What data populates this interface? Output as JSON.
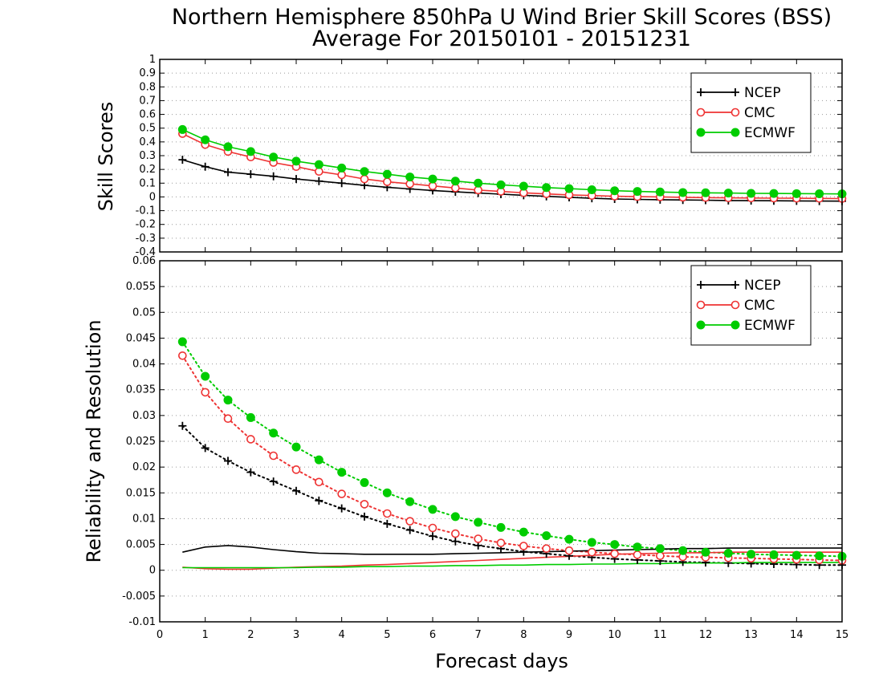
{
  "title_line1": "Northern Hemisphere 850hPa U Wind Brier Skill Scores (BSS)",
  "title_line2": "Average For 20150101 - 20151231",
  "xlabel": "Forecast days",
  "chart_data": [
    {
      "type": "line",
      "ylabel": "Skill Scores",
      "xlim": [
        0,
        15
      ],
      "ylim": [
        -0.4,
        1
      ],
      "x_ticks": [
        0,
        1,
        2,
        3,
        4,
        5,
        6,
        7,
        8,
        9,
        10,
        11,
        12,
        13,
        14,
        15
      ],
      "y_ticks": [
        "1",
        "0.9",
        "0.8",
        "0.7",
        "0.6",
        "0.5",
        "0.4",
        "0.3",
        "0.2",
        "0.1",
        "0",
        "-0.1",
        "-0.2",
        "-0.3",
        "-0.4"
      ],
      "y_tick_values": [
        1,
        0.9,
        0.8,
        0.7,
        0.6,
        0.5,
        0.4,
        0.3,
        0.2,
        0.1,
        0,
        -0.1,
        -0.2,
        -0.3,
        -0.4
      ],
      "grid": true,
      "legend_position": "top-right",
      "x": [
        0.5,
        1,
        1.5,
        2,
        2.5,
        3,
        3.5,
        4,
        4.5,
        5,
        5.5,
        6,
        6.5,
        7,
        7.5,
        8,
        8.5,
        9,
        9.5,
        10,
        10.5,
        11,
        11.5,
        12,
        12.5,
        13,
        13.5,
        14,
        14.5,
        15
      ],
      "series": [
        {
          "name": "NCEP",
          "color": "#000000",
          "marker": "plus",
          "style": "solid",
          "values": [
            0.27,
            0.22,
            0.18,
            0.165,
            0.15,
            0.13,
            0.115,
            0.1,
            0.085,
            0.07,
            0.058,
            0.047,
            0.037,
            0.028,
            0.02,
            0.012,
            0.004,
            -0.003,
            -0.01,
            -0.015,
            -0.018,
            -0.02,
            -0.022,
            -0.024,
            -0.026,
            -0.027,
            -0.028,
            -0.029,
            -0.03,
            -0.031
          ]
        },
        {
          "name": "CMC",
          "color": "#ee3333",
          "marker": "open-circle",
          "style": "solid",
          "values": [
            0.46,
            0.38,
            0.33,
            0.29,
            0.25,
            0.22,
            0.185,
            0.16,
            0.13,
            0.11,
            0.095,
            0.08,
            0.065,
            0.05,
            0.04,
            0.03,
            0.022,
            0.015,
            0.01,
            0.005,
            0.002,
            0,
            -0.003,
            -0.005,
            -0.007,
            -0.008,
            -0.009,
            -0.01,
            -0.011,
            -0.012
          ]
        },
        {
          "name": "ECMWF",
          "color": "#00cc00",
          "marker": "filled-circle",
          "style": "solid",
          "values": [
            0.49,
            0.415,
            0.365,
            0.33,
            0.29,
            0.26,
            0.235,
            0.21,
            0.185,
            0.165,
            0.145,
            0.13,
            0.115,
            0.1,
            0.088,
            0.078,
            0.068,
            0.06,
            0.052,
            0.045,
            0.04,
            0.036,
            0.032,
            0.03,
            0.028,
            0.026,
            0.025,
            0.024,
            0.023,
            0.022
          ]
        }
      ]
    },
    {
      "type": "line",
      "ylabel": "Reliability and Resolution",
      "xlim": [
        0,
        15
      ],
      "ylim": [
        -0.01,
        0.06
      ],
      "x_ticks": [
        0,
        1,
        2,
        3,
        4,
        5,
        6,
        7,
        8,
        9,
        10,
        11,
        12,
        13,
        14,
        15
      ],
      "y_ticks": [
        "0.06",
        "0.055",
        "0.05",
        "0.045",
        "0.04",
        "0.035",
        "0.03",
        "0.025",
        "0.02",
        "0.015",
        "0.01",
        "0.005",
        "0",
        "-0.005",
        "-0.01"
      ],
      "y_tick_values": [
        0.06,
        0.055,
        0.05,
        0.045,
        0.04,
        0.035,
        0.03,
        0.025,
        0.02,
        0.015,
        0.01,
        0.005,
        0,
        -0.005,
        -0.01
      ],
      "grid": true,
      "legend_position": "top-right",
      "x": [
        0.5,
        1,
        1.5,
        2,
        2.5,
        3,
        3.5,
        4,
        4.5,
        5,
        5.5,
        6,
        6.5,
        7,
        7.5,
        8,
        8.5,
        9,
        9.5,
        10,
        10.5,
        11,
        11.5,
        12,
        12.5,
        13,
        13.5,
        14,
        14.5,
        15
      ],
      "series": [
        {
          "name": "NCEP",
          "color": "#000000",
          "marker": "plus",
          "style": "dotted",
          "values": [
            0.028,
            0.0237,
            0.0212,
            0.019,
            0.0172,
            0.0154,
            0.0135,
            0.012,
            0.0104,
            0.009,
            0.0078,
            0.0066,
            0.0056,
            0.0048,
            0.0042,
            0.0036,
            0.0032,
            0.0028,
            0.0025,
            0.0022,
            0.002,
            0.0018,
            0.0016,
            0.0015,
            0.0014,
            0.0013,
            0.0012,
            0.0011,
            0.001,
            0.001
          ]
        },
        {
          "name": "CMC",
          "color": "#ee3333",
          "marker": "open-circle",
          "style": "dotted",
          "values": [
            0.0416,
            0.0345,
            0.0294,
            0.0254,
            0.0222,
            0.0195,
            0.0171,
            0.0148,
            0.0128,
            0.011,
            0.0095,
            0.0082,
            0.0071,
            0.0061,
            0.0053,
            0.0047,
            0.0042,
            0.0038,
            0.0035,
            0.0032,
            0.003,
            0.0028,
            0.0026,
            0.0025,
            0.0024,
            0.0023,
            0.0022,
            0.0021,
            0.002,
            0.0019
          ]
        },
        {
          "name": "ECMWF",
          "color": "#00cc00",
          "marker": "filled-circle",
          "style": "dotted",
          "values": [
            0.0443,
            0.0376,
            0.033,
            0.0296,
            0.0266,
            0.0239,
            0.0214,
            0.019,
            0.017,
            0.015,
            0.0133,
            0.0118,
            0.0104,
            0.0093,
            0.0083,
            0.0074,
            0.0067,
            0.006,
            0.0054,
            0.005,
            0.0045,
            0.0042,
            0.0038,
            0.0035,
            0.0033,
            0.0031,
            0.003,
            0.0029,
            0.0028,
            0.0027
          ]
        },
        {
          "name": "",
          "color": "#000000",
          "marker": "none",
          "style": "solid",
          "values": [
            0.0035,
            0.0045,
            0.0048,
            0.0045,
            0.004,
            0.0036,
            0.0033,
            0.0032,
            0.0031,
            0.0031,
            0.0031,
            0.0031,
            0.0032,
            0.0033,
            0.0034,
            0.0035,
            0.0036,
            0.0037,
            0.0038,
            0.0039,
            0.004,
            0.0041,
            0.0042,
            0.0042,
            0.0043,
            0.0043,
            0.0043,
            0.0043,
            0.0043,
            0.0043
          ]
        },
        {
          "name": "",
          "color": "#ee3333",
          "marker": "none",
          "style": "solid",
          "values": [
            0.0006,
            0.0003,
            0.0002,
            0.0002,
            0.0004,
            0.0006,
            0.0007,
            0.0008,
            0.001,
            0.0011,
            0.0013,
            0.0015,
            0.0017,
            0.0019,
            0.0021,
            0.0023,
            0.0025,
            0.0027,
            0.0029,
            0.0031,
            0.0032,
            0.0033,
            0.0034,
            0.0034,
            0.0035,
            0.0035,
            0.0035,
            0.0035,
            0.0035,
            0.0035
          ]
        },
        {
          "name": "",
          "color": "#00cc00",
          "marker": "none",
          "style": "solid",
          "values": [
            0.0005,
            0.0005,
            0.0005,
            0.0005,
            0.0005,
            0.0005,
            0.0006,
            0.0006,
            0.0007,
            0.0007,
            0.0008,
            0.0008,
            0.0009,
            0.0009,
            0.001,
            0.001,
            0.0011,
            0.0011,
            0.0012,
            0.0012,
            0.0013,
            0.0013,
            0.0014,
            0.0014,
            0.0014,
            0.0015,
            0.0015,
            0.0015,
            0.0015,
            0.0015
          ]
        }
      ]
    }
  ]
}
